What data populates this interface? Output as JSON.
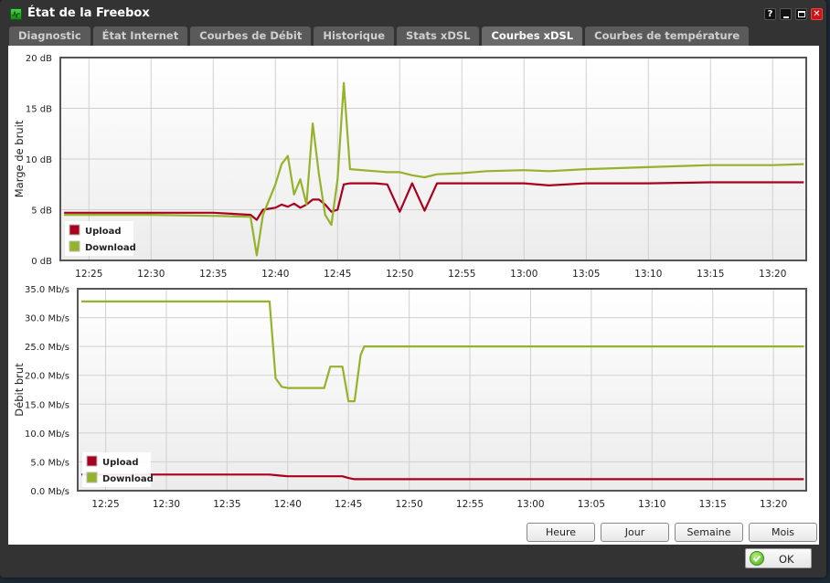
{
  "window": {
    "title": "État de la Freebox",
    "controls": {
      "help": "?",
      "minimize": "–",
      "maximize": "□",
      "close": "✕"
    }
  },
  "tabs": [
    {
      "label": "Diagnostic",
      "active": false
    },
    {
      "label": "État Internet",
      "active": false
    },
    {
      "label": "Courbes de Débit",
      "active": false
    },
    {
      "label": "Historique",
      "active": false
    },
    {
      "label": "Stats xDSL",
      "active": false
    },
    {
      "label": "Courbes xDSL",
      "active": true
    },
    {
      "label": "Courbes de température",
      "active": false
    }
  ],
  "colors": {
    "upload": "#a8001e",
    "download": "#95b22b",
    "plot_border": "#555555",
    "grid": "#d0d0d0"
  },
  "legend": {
    "upload": "Upload",
    "download": "Download"
  },
  "range_buttons": [
    "Heure",
    "Jour",
    "Semaine",
    "Mois"
  ],
  "ok_button": {
    "label": "OK"
  },
  "chart_data": [
    {
      "type": "line",
      "title": "",
      "ylabel": "Marge de bruit",
      "xlabel": "",
      "ylim": [
        0,
        20
      ],
      "yticks": [
        "0 dB",
        "5 dB",
        "10 dB",
        "15 dB",
        "20 dB"
      ],
      "xticks": [
        "12:25",
        "12:30",
        "12:35",
        "12:40",
        "12:45",
        "12:50",
        "12:55",
        "13:00",
        "13:05",
        "13:10",
        "13:15",
        "13:20"
      ],
      "grid": true,
      "legend_position": "bottom-left",
      "x": [
        "12:23",
        "12:25",
        "12:30",
        "12:35",
        "12:38",
        "12:38.5",
        "12:39",
        "12:40",
        "12:40.5",
        "12:41",
        "12:41.5",
        "12:42",
        "12:42.5",
        "12:43",
        "12:43.5",
        "12:44",
        "12:44.5",
        "12:45",
        "12:45.5",
        "12:46",
        "12:48",
        "12:49",
        "12:50",
        "12:51",
        "12:52",
        "12:53",
        "12:55",
        "12:57",
        "13:00",
        "13:02",
        "13:05",
        "13:10",
        "13:15",
        "13:20",
        "13:22.5"
      ],
      "series": [
        {
          "name": "Upload",
          "values": [
            4.7,
            4.7,
            4.7,
            4.7,
            4.5,
            4.0,
            5.0,
            5.2,
            5.5,
            5.3,
            5.6,
            5.2,
            5.5,
            6.0,
            6.0,
            5.5,
            4.8,
            5.0,
            7.5,
            7.6,
            7.6,
            7.5,
            4.8,
            7.6,
            4.9,
            7.6,
            7.6,
            7.6,
            7.6,
            7.4,
            7.6,
            7.6,
            7.7,
            7.7,
            7.7
          ]
        },
        {
          "name": "Download",
          "values": [
            4.5,
            4.5,
            4.5,
            4.4,
            4.3,
            0.5,
            4.5,
            7.5,
            9.5,
            10.3,
            6.5,
            8.0,
            5.5,
            13.5,
            8.5,
            4.5,
            3.5,
            8.0,
            17.5,
            9.0,
            8.8,
            8.7,
            8.7,
            8.4,
            8.2,
            8.5,
            8.6,
            8.8,
            8.9,
            8.8,
            9.0,
            9.2,
            9.4,
            9.4,
            9.5
          ]
        }
      ]
    },
    {
      "type": "line",
      "title": "",
      "ylabel": "Débit brut",
      "xlabel": "",
      "ylim": [
        0,
        35
      ],
      "yticks": [
        "0.0 Mb/s",
        "5.0 Mb/s",
        "10.0 Mb/s",
        "15.0 Mb/s",
        "20.0 Mb/s",
        "25.0 Mb/s",
        "30.0 Mb/s",
        "35.0 Mb/s"
      ],
      "xticks": [
        "12:25",
        "12:30",
        "12:35",
        "12:40",
        "12:45",
        "12:50",
        "12:55",
        "13:00",
        "13:05",
        "13:10",
        "13:15",
        "13:20"
      ],
      "grid": true,
      "legend_position": "bottom-left",
      "x": [
        "12:23",
        "12:30",
        "12:38.5",
        "12:39",
        "12:39.5",
        "12:40",
        "12:43",
        "12:43.5",
        "12:44.5",
        "12:45",
        "12:45.5",
        "12:46",
        "12:46.3",
        "12:50",
        "13:00",
        "13:10",
        "13:22.5"
      ],
      "series": [
        {
          "name": "Upload",
          "values": [
            2.8,
            2.8,
            2.8,
            2.7,
            2.6,
            2.5,
            2.5,
            2.5,
            2.5,
            2.2,
            2.0,
            2.0,
            2.0,
            2.0,
            2.0,
            2.0,
            2.0
          ]
        },
        {
          "name": "Download",
          "values": [
            32.8,
            32.8,
            32.8,
            19.5,
            18.0,
            17.8,
            17.8,
            21.5,
            21.5,
            15.5,
            15.5,
            23.5,
            25.0,
            25.0,
            25.0,
            25.0,
            25.0
          ]
        }
      ]
    }
  ]
}
